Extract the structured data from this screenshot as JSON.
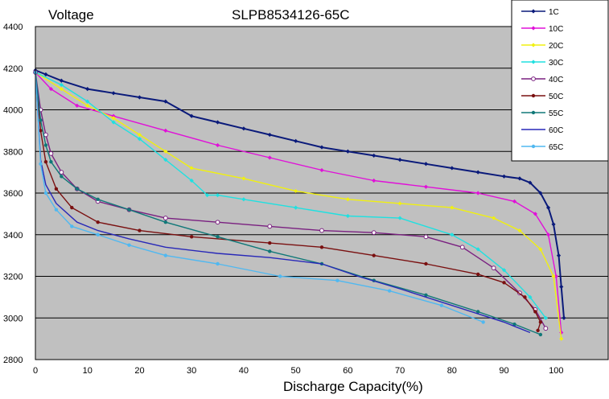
{
  "chart_data": {
    "type": "line",
    "title": "SLPB8534126-65C",
    "ylabel": "Voltage",
    "xlabel": "Discharge Capacity(%)",
    "xlim": [
      0,
      110
    ],
    "ylim": [
      2800,
      4400
    ],
    "xticks": [
      "0",
      "10",
      "20",
      "30",
      "40",
      "50",
      "60",
      "70",
      "80",
      "90",
      "100"
    ],
    "yticks": [
      "2800",
      "3000",
      "3200",
      "3400",
      "3600",
      "3800",
      "4000",
      "4200",
      "4400"
    ],
    "grid": true,
    "legend_position": "top-right",
    "plot_background": "#c0c0c0",
    "series": [
      {
        "name": "1C",
        "color": "#0a1a7a",
        "marker": "diamond",
        "x": [
          0,
          2,
          5,
          10,
          15,
          20,
          25,
          30,
          35,
          40,
          45,
          50,
          55,
          60,
          65,
          70,
          75,
          80,
          85,
          90,
          93,
          95,
          97,
          98.5,
          99.5,
          100.5,
          101,
          101.5
        ],
        "y": [
          4190,
          4170,
          4140,
          4100,
          4080,
          4060,
          4040,
          3970,
          3940,
          3910,
          3880,
          3850,
          3820,
          3800,
          3780,
          3760,
          3740,
          3720,
          3700,
          3680,
          3670,
          3650,
          3600,
          3530,
          3450,
          3300,
          3150,
          3000
        ]
      },
      {
        "name": "10C",
        "color": "#e010d8",
        "marker": "diamond",
        "x": [
          0,
          3,
          8,
          15,
          25,
          35,
          45,
          55,
          65,
          75,
          85,
          92,
          96,
          98.5,
          100,
          101
        ],
        "y": [
          4180,
          4100,
          4020,
          3970,
          3900,
          3830,
          3770,
          3710,
          3660,
          3630,
          3600,
          3560,
          3500,
          3400,
          3200,
          2930
        ]
      },
      {
        "name": "20C",
        "color": "#f0f010",
        "marker": "diamond",
        "x": [
          0,
          5,
          10,
          15,
          20,
          25,
          30,
          40,
          50,
          60,
          70,
          80,
          88,
          93,
          97,
          99.5,
          101
        ],
        "y": [
          4180,
          4100,
          4020,
          3960,
          3880,
          3800,
          3720,
          3670,
          3610,
          3570,
          3550,
          3530,
          3480,
          3420,
          3330,
          3200,
          2900
        ]
      },
      {
        "name": "30C",
        "color": "#20e0e0",
        "marker": "diamond",
        "x": [
          0,
          5,
          10,
          15,
          20,
          25,
          30,
          33,
          35,
          40,
          50,
          60,
          70,
          80,
          85,
          90,
          95,
          98
        ],
        "y": [
          4180,
          4120,
          4040,
          3940,
          3860,
          3760,
          3660,
          3590,
          3590,
          3570,
          3530,
          3490,
          3480,
          3400,
          3330,
          3230,
          3100,
          3000
        ]
      },
      {
        "name": "40C",
        "color": "#7a2080",
        "marker": "circle-open",
        "x": [
          0,
          1,
          2,
          3,
          5,
          8,
          12,
          18,
          25,
          35,
          45,
          55,
          65,
          75,
          82,
          88,
          93,
          96,
          98
        ],
        "y": [
          4180,
          4000,
          3880,
          3790,
          3700,
          3620,
          3560,
          3520,
          3480,
          3460,
          3440,
          3420,
          3410,
          3390,
          3340,
          3240,
          3120,
          3040,
          2950
        ]
      },
      {
        "name": "50C",
        "color": "#7a1010",
        "marker": "circle",
        "x": [
          0,
          1,
          2,
          4,
          7,
          12,
          20,
          30,
          45,
          55,
          65,
          75,
          85,
          90,
          94,
          96,
          97,
          96.5
        ],
        "y": [
          4180,
          3900,
          3750,
          3620,
          3530,
          3460,
          3420,
          3390,
          3360,
          3340,
          3300,
          3260,
          3210,
          3170,
          3100,
          3030,
          2980,
          2940
        ]
      },
      {
        "name": "55C",
        "color": "#107878",
        "marker": "circle",
        "x": [
          0,
          1,
          2,
          3,
          5,
          8,
          12,
          18,
          25,
          35,
          45,
          55,
          65,
          75,
          85,
          92,
          97
        ],
        "y": [
          4180,
          3950,
          3830,
          3750,
          3680,
          3620,
          3570,
          3520,
          3460,
          3390,
          3320,
          3260,
          3180,
          3110,
          3030,
          2970,
          2920
        ]
      },
      {
        "name": "60C",
        "color": "#2828b8",
        "marker": "none",
        "x": [
          0,
          1,
          2,
          4,
          8,
          12,
          18,
          25,
          35,
          45,
          55,
          62,
          70,
          80,
          90,
          95
        ],
        "y": [
          4180,
          3760,
          3640,
          3550,
          3460,
          3420,
          3380,
          3340,
          3310,
          3290,
          3260,
          3200,
          3140,
          3060,
          2980,
          2930
        ]
      },
      {
        "name": "65C",
        "color": "#50b8f0",
        "marker": "circle",
        "x": [
          0,
          1,
          2,
          4,
          7,
          12,
          18,
          25,
          35,
          47,
          58,
          68,
          78,
          86
        ],
        "y": [
          4180,
          3740,
          3600,
          3520,
          3440,
          3400,
          3350,
          3300,
          3260,
          3200,
          3180,
          3130,
          3060,
          2980
        ]
      }
    ]
  }
}
